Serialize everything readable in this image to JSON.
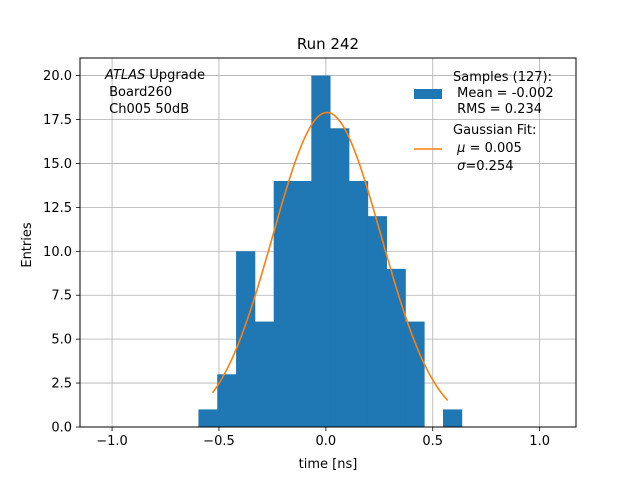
{
  "chart_data": {
    "type": "bar",
    "title": "Run 242",
    "xlabel": "time [ns]",
    "ylabel": "Entries",
    "xlim": [
      -1.15,
      1.17
    ],
    "ylim": [
      0,
      21
    ],
    "grid": true,
    "x_ticks": [
      -1.0,
      -0.5,
      0.0,
      0.5,
      1.0
    ],
    "x_tick_labels": [
      "−1.0",
      "−0.5",
      "0.0",
      "0.5",
      "1.0"
    ],
    "y_ticks": [
      0,
      2.5,
      5,
      7.5,
      10,
      12.5,
      15,
      17.5,
      20
    ],
    "y_tick_labels": [
      "0.0",
      "2.5",
      "5.0",
      "7.5",
      "10.0",
      "12.5",
      "15.0",
      "17.5",
      "20.0"
    ],
    "bin_edges": [
      -0.596,
      -0.508,
      -0.42,
      -0.332,
      -0.244,
      -0.156,
      -0.068,
      0.02,
      0.108,
      0.196,
      0.284,
      0.372,
      0.46,
      0.548,
      0.636
    ],
    "counts": [
      1,
      3,
      10,
      6,
      14,
      14,
      20,
      17,
      14,
      12,
      9,
      6,
      0,
      1
    ],
    "bar_color": "#1f77b4",
    "fit_color": "#ff7f0e",
    "fit": {
      "mu": 0.005,
      "sigma": 0.254,
      "amplitude": 17.9,
      "x_range": [
        -0.53,
        0.57
      ]
    },
    "annotation": {
      "italic": "ATLAS",
      "line1_rest": " Upgrade",
      "line2": " Board260",
      "line3": " Ch005 50dB"
    },
    "legend": {
      "position": "top-right",
      "samples": {
        "line1": "Samples (127):",
        "line2": " Mean = -0.002",
        "line3": " RMS = 0.234"
      },
      "fit": {
        "line1": "Gaussian Fit:",
        "mu_sym": "μ",
        "mu_rest": " = 0.005",
        "sigma_sym": "σ",
        "sigma_rest": "=0.254"
      }
    }
  }
}
